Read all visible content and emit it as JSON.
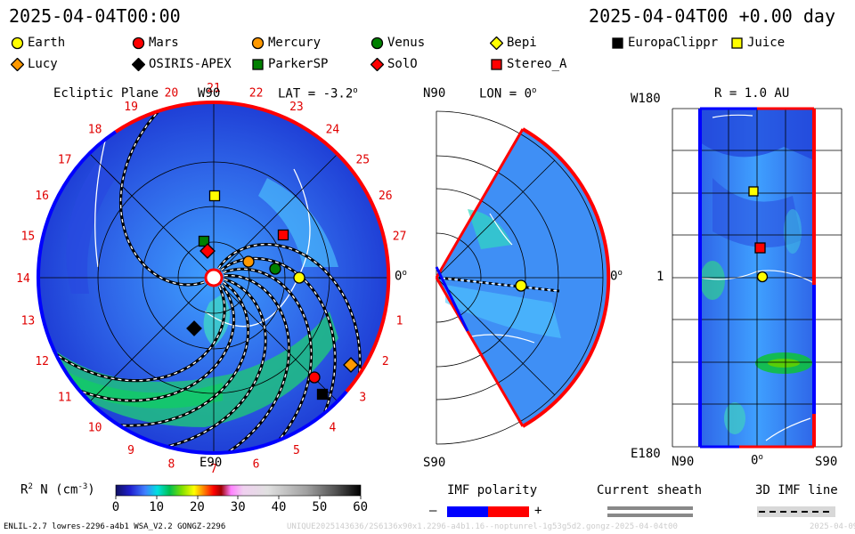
{
  "header": {
    "date_left": "2025-04-04T00:00",
    "date_right": "2025-04-04T00 +0.00 day"
  },
  "bodies": [
    {
      "name": "Earth",
      "shape": "circle",
      "color": "#ffff00"
    },
    {
      "name": "Mars",
      "shape": "circle",
      "color": "#ff0000"
    },
    {
      "name": "Mercury",
      "shape": "circle",
      "color": "#ff9900"
    },
    {
      "name": "Venus",
      "shape": "circle",
      "color": "#008000"
    },
    {
      "name": "Bepi",
      "shape": "diamond",
      "color": "#ffff00"
    },
    {
      "name": "EuropaClippr",
      "shape": "square",
      "color": "#000000"
    },
    {
      "name": "Juice",
      "shape": "square",
      "color": "#ffff00"
    },
    {
      "name": "Lucy",
      "shape": "diamond",
      "color": "#ff9900"
    },
    {
      "name": "OSIRIS-APEX",
      "shape": "diamond",
      "color": "#000000"
    },
    {
      "name": "ParkerSP",
      "shape": "square",
      "color": "#008000"
    },
    {
      "name": "SolO",
      "shape": "diamond",
      "color": "#ff0000"
    },
    {
      "name": "Stereo_A",
      "shape": "square",
      "color": "#ff0000"
    }
  ],
  "panels": {
    "ecliptic": {
      "title": "Ecliptic Plane",
      "lat": "LAT = -3.2",
      "deg": "o",
      "top": "W90",
      "bottom": "E90",
      "right": "0",
      "carrington": [
        "0",
        "1",
        "2",
        "3",
        "4",
        "5",
        "6",
        "7",
        "8",
        "9",
        "10",
        "11",
        "12",
        "13",
        "14",
        "15",
        "16",
        "17",
        "18",
        "19",
        "20",
        "21",
        "22",
        "23",
        "24",
        "25",
        "26",
        "27"
      ]
    },
    "meridional": {
      "lon": "LON = 0",
      "deg": "o",
      "top": "N90",
      "bottom": "S90",
      "right": "0"
    },
    "lonlat": {
      "r": "R = 1.0 AU",
      "top_left": "W180",
      "mid_left": "1",
      "bottom_left": "E180",
      "x_labels": [
        "N90",
        "0",
        "S90"
      ]
    }
  },
  "colorbar": {
    "label": "R",
    "label_sup": "2",
    "label_rest": " N (cm",
    "label_exp": "-3",
    "label_end": ")",
    "ticks": [
      "0",
      "10",
      "20",
      "30",
      "40",
      "50",
      "60"
    ]
  },
  "imf_legend": {
    "title": "IMF polarity",
    "minus": "–",
    "plus": "+",
    "neg_color": "#0000ff",
    "pos_color": "#ff0000"
  },
  "sheath_legend": {
    "title": "Current sheath"
  },
  "line_legend": {
    "title": "3D IMF line"
  },
  "footer": {
    "left": "ENLIL-2.7 lowres-2296-a4b1 WSA_V2.2 GONGZ-2296",
    "center": "UNIQUE2025143636/2S6136x90x1.2296-a4b1.16--noptunrel-1g53g5d2.gongz-2025-04-04t00",
    "right": "2025-04-09"
  }
}
